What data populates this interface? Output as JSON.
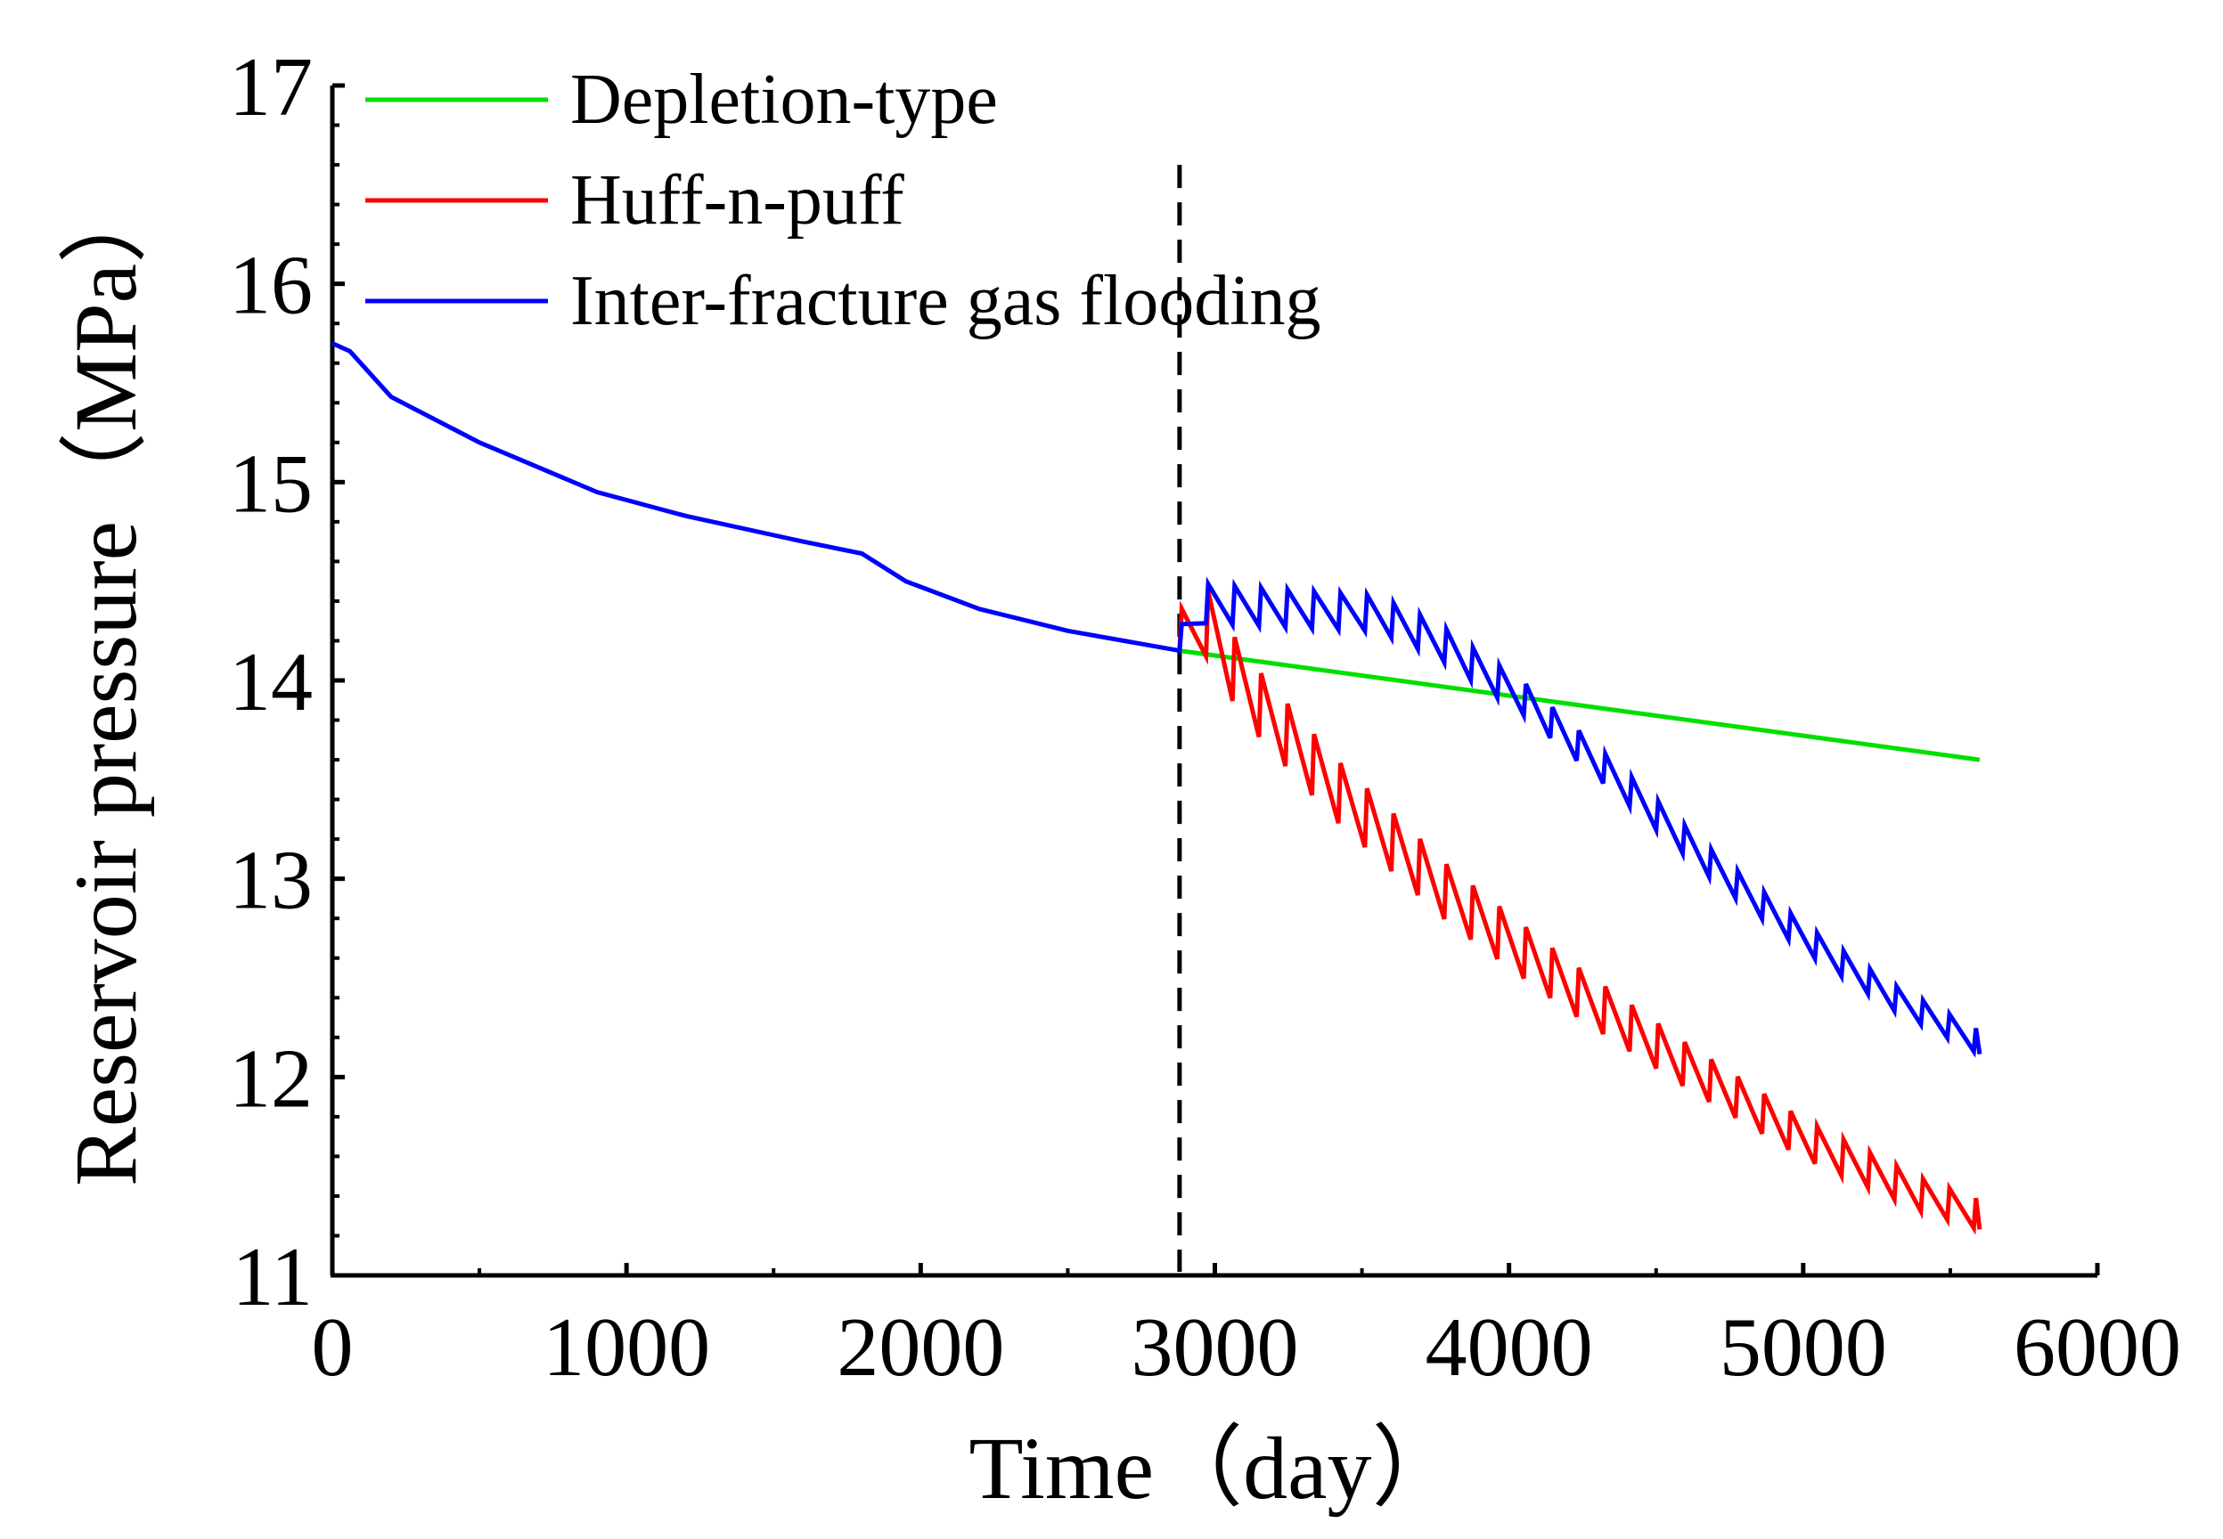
{
  "chart_data": {
    "type": "line",
    "title": "",
    "xlabel": "Time（day）",
    "ylabel": "Reservoir pressure（MPa）",
    "xlim": [
      0,
      6000
    ],
    "ylim": [
      11,
      17
    ],
    "xticks": [
      0,
      1000,
      2000,
      3000,
      4000,
      5000,
      6000
    ],
    "xtick_labels": [
      "0",
      "1000",
      "2000",
      "3000",
      "4000",
      "5000",
      "6000"
    ],
    "yticks": [
      11,
      12,
      13,
      14,
      15,
      16,
      17
    ],
    "ytick_labels": [
      "11",
      "12",
      "13",
      "14",
      "15",
      "16",
      "17"
    ],
    "grid": false,
    "legend_position": "top-left",
    "divider": {
      "x": 2880,
      "style": "dashed",
      "color": "#000000"
    },
    "series": [
      {
        "name": "Depletion-type",
        "color": "#00e000",
        "start_x": 2880,
        "end_x": 5600,
        "start_y": 14.15,
        "end_y": 13.6,
        "oscillation": null
      },
      {
        "name": "Huff-n-puff",
        "color": "#ff0000",
        "start_x": 2880,
        "end_x": 5600,
        "base_points": [
          [
            2880,
            14.15
          ],
          [
            2950,
            14.33
          ],
          [
            3100,
            13.95
          ],
          [
            3400,
            13.45
          ],
          [
            3800,
            12.9
          ],
          [
            4200,
            12.45
          ],
          [
            4600,
            12.05
          ],
          [
            5000,
            11.68
          ],
          [
            5400,
            11.4
          ],
          [
            5600,
            11.3
          ]
        ],
        "oscillation": {
          "period": 90,
          "amplitude_start": 0.35,
          "amplitude_end": 0.15
        }
      },
      {
        "name": "Inter-fracture gas flooding",
        "color": "#0000ff",
        "start_x": 0,
        "end_x": 5600,
        "base_points": [
          [
            0,
            15.7
          ],
          [
            60,
            15.66
          ],
          [
            200,
            15.43
          ],
          [
            500,
            15.2
          ],
          [
            900,
            14.95
          ],
          [
            1200,
            14.83
          ],
          [
            1600,
            14.7
          ],
          [
            1800,
            14.64
          ],
          [
            1950,
            14.5
          ],
          [
            2200,
            14.36
          ],
          [
            2500,
            14.25
          ],
          [
            2880,
            14.15
          ],
          [
            2950,
            14.38
          ],
          [
            3300,
            14.35
          ],
          [
            3550,
            14.33
          ],
          [
            3750,
            14.2
          ],
          [
            4050,
            13.9
          ],
          [
            4400,
            13.45
          ],
          [
            4700,
            13.05
          ],
          [
            5000,
            12.7
          ],
          [
            5300,
            12.4
          ],
          [
            5600,
            12.17
          ]
        ],
        "oscillation": {
          "start": 2880,
          "period": 90,
          "amplitude_start": 0.2,
          "amplitude_end": 0.12
        }
      }
    ]
  }
}
